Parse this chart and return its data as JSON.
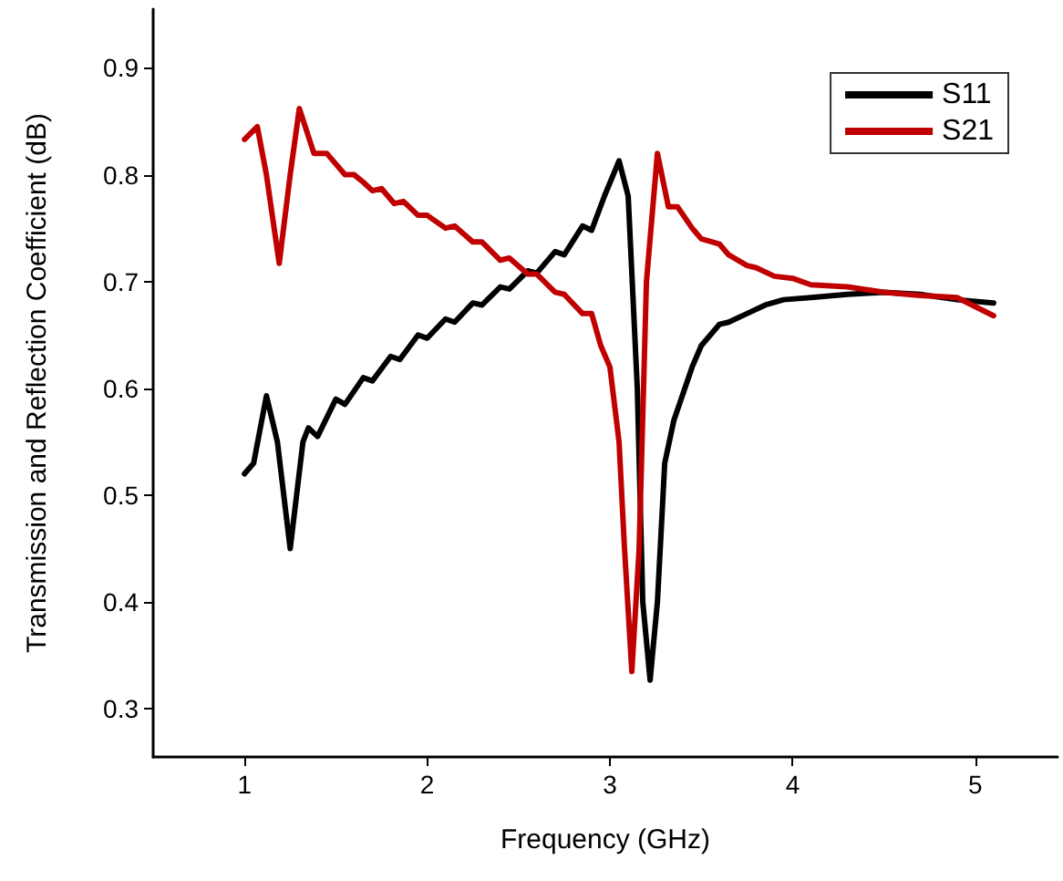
{
  "chart_data": {
    "type": "line",
    "xlabel": "Frequency (GHz)",
    "ylabel": "Transmission and Reflection Coefficient (dB)",
    "xlim": [
      0.5,
      5.45
    ],
    "xticks": [
      1,
      2,
      3,
      4,
      5
    ],
    "ylim": [
      0.255,
      0.955
    ],
    "yticks": [
      0.3,
      0.4,
      0.5,
      0.6,
      0.7,
      0.8,
      0.9
    ],
    "grid": false,
    "legend": "top right",
    "marker": "none",
    "line_style": "solid",
    "series": [
      {
        "name": "S11",
        "color": "#000000",
        "x": [
          1.0,
          1.05,
          1.12,
          1.18,
          1.25,
          1.32,
          1.35,
          1.4,
          1.5,
          1.55,
          1.65,
          1.7,
          1.8,
          1.85,
          1.95,
          2.0,
          2.1,
          2.15,
          2.25,
          2.3,
          2.4,
          2.45,
          2.55,
          2.6,
          2.7,
          2.75,
          2.85,
          2.9,
          2.97,
          3.05,
          3.1,
          3.15,
          3.18,
          3.22,
          3.26,
          3.3,
          3.35,
          3.45,
          3.5,
          3.6,
          3.65,
          3.75,
          3.85,
          3.95,
          4.1,
          4.3,
          4.5,
          4.7,
          4.9,
          5.1
        ],
        "values": [
          0.52,
          0.53,
          0.593,
          0.55,
          0.45,
          0.55,
          0.563,
          0.555,
          0.59,
          0.585,
          0.61,
          0.607,
          0.63,
          0.627,
          0.65,
          0.647,
          0.665,
          0.662,
          0.68,
          0.678,
          0.695,
          0.693,
          0.71,
          0.708,
          0.728,
          0.725,
          0.752,
          0.748,
          0.78,
          0.813,
          0.78,
          0.6,
          0.4,
          0.327,
          0.4,
          0.53,
          0.57,
          0.62,
          0.64,
          0.66,
          0.662,
          0.67,
          0.678,
          0.683,
          0.685,
          0.688,
          0.69,
          0.688,
          0.683,
          0.68
        ]
      },
      {
        "name": "S21",
        "color": "#c00000",
        "x": [
          1.0,
          1.07,
          1.12,
          1.19,
          1.25,
          1.3,
          1.38,
          1.45,
          1.5,
          1.55,
          1.6,
          1.65,
          1.7,
          1.75,
          1.82,
          1.87,
          1.95,
          2.0,
          2.1,
          2.15,
          2.25,
          2.3,
          2.4,
          2.45,
          2.55,
          2.6,
          2.7,
          2.75,
          2.85,
          2.9,
          2.95,
          3.0,
          3.05,
          3.08,
          3.12,
          3.16,
          3.2,
          3.26,
          3.32,
          3.37,
          3.45,
          3.5,
          3.6,
          3.65,
          3.75,
          3.8,
          3.9,
          4.0,
          4.1,
          4.3,
          4.5,
          4.7,
          4.9,
          5.1
        ],
        "values": [
          0.833,
          0.845,
          0.8,
          0.717,
          0.8,
          0.862,
          0.82,
          0.82,
          0.81,
          0.8,
          0.8,
          0.793,
          0.785,
          0.787,
          0.773,
          0.775,
          0.762,
          0.762,
          0.75,
          0.752,
          0.737,
          0.737,
          0.72,
          0.722,
          0.707,
          0.707,
          0.69,
          0.688,
          0.67,
          0.67,
          0.64,
          0.62,
          0.55,
          0.45,
          0.335,
          0.45,
          0.7,
          0.82,
          0.77,
          0.77,
          0.75,
          0.74,
          0.735,
          0.725,
          0.715,
          0.713,
          0.705,
          0.703,
          0.697,
          0.695,
          0.69,
          0.687,
          0.685,
          0.668
        ]
      }
    ]
  }
}
